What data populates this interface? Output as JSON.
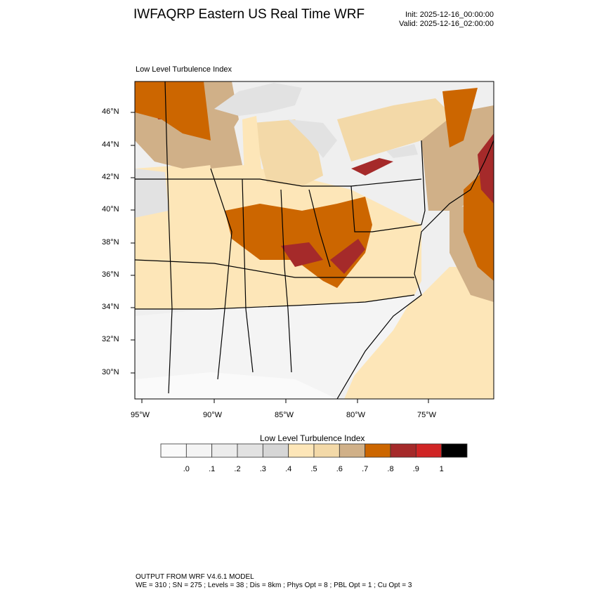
{
  "header": {
    "title": "IWFAQRP Eastern US Real Time WRF",
    "init": "Init: 2025-12-16_00:00:00",
    "valid": "Valid: 2025-12-16_02:00:00"
  },
  "plot": {
    "subtitle": "Low Level Turbulence Index",
    "lat_labels": [
      "46°N",
      "44°N",
      "42°N",
      "40°N",
      "38°N",
      "36°N",
      "34°N",
      "32°N",
      "30°N"
    ],
    "lon_labels": [
      "95°W",
      "90°W",
      "85°W",
      "80°W",
      "75°W"
    ]
  },
  "colorbar": {
    "title": "Low Level Turbulence Index",
    "colors": [
      "#fafafa",
      "#f4f4f4",
      "#ececec",
      "#e2e2e2",
      "#d6d6d6",
      "#fde6b8",
      "#f3d9a8",
      "#d0b088",
      "#cc6600",
      "#a52a2a",
      "#d02525",
      "#000000"
    ],
    "labels": [
      ".0",
      ".1",
      ".2",
      ".3",
      ".4",
      ".5",
      ".6",
      ".7",
      ".8",
      ".9",
      "1"
    ]
  },
  "footer": {
    "line1": "OUTPUT FROM WRF V4.6.1 MODEL",
    "line2": "WE = 310 ; SN = 275 ; Levels = 38 ; Dis = 8km ; Phys Opt = 8 ; PBL Opt = 1 ; Cu Opt = 3"
  }
}
